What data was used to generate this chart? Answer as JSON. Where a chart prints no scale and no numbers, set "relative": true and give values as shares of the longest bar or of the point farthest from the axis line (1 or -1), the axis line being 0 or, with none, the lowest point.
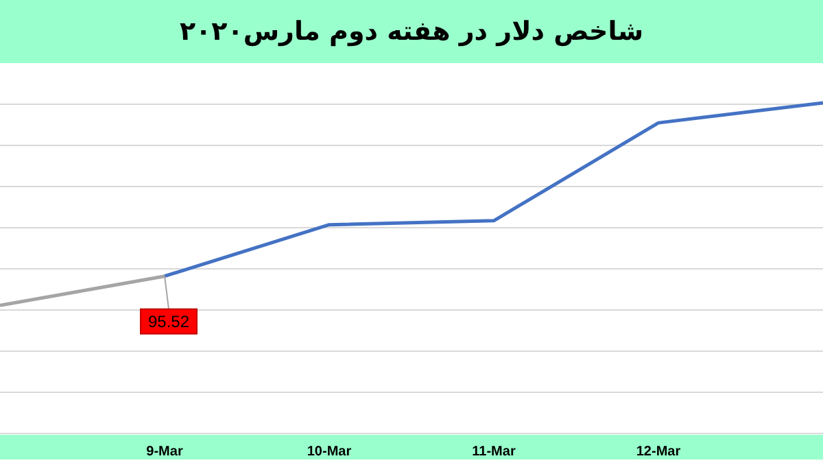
{
  "chart_data": {
    "type": "line",
    "title": "شاخص دلار در هفته دوم مارس۲۰۲۰",
    "categories": [
      null,
      "9-Mar",
      "10-Mar",
      "11-Mar",
      "12-Mar",
      null
    ],
    "relative": true,
    "grid": "y",
    "marker": "none",
    "annotations": [
      {
        "text": "95.52",
        "x": "9-Mar"
      }
    ],
    "series": [
      {
        "color": "#a5a5a5",
        "values": [
          0.39,
          0.478,
          null,
          null,
          null,
          null
        ]
      },
      {
        "color": "#4472c4",
        "values": [
          null,
          0.478,
          0.633,
          0.645,
          0.94,
          1
        ]
      }
    ]
  }
}
